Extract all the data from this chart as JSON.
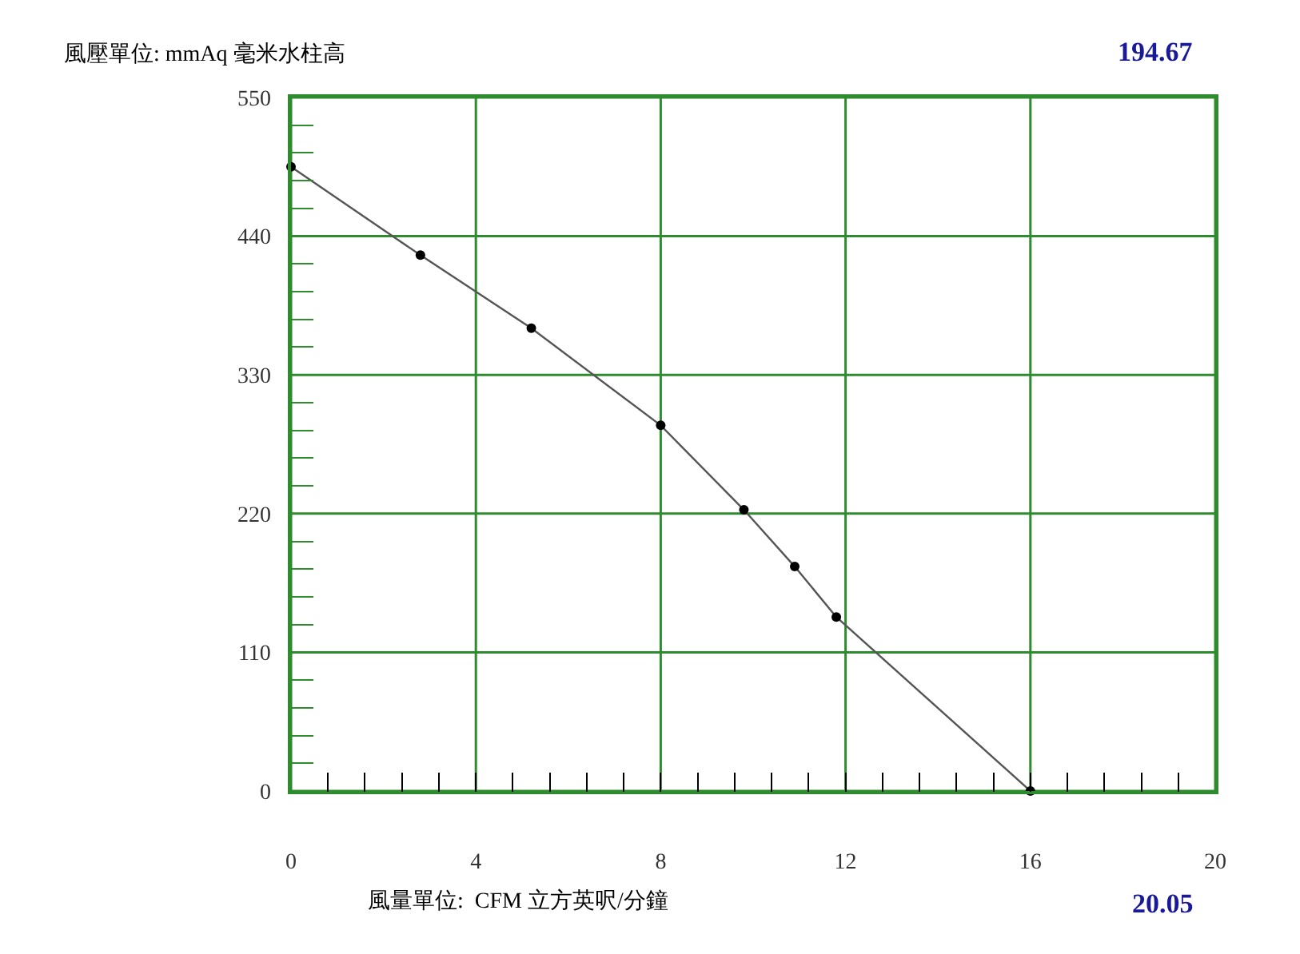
{
  "chart_data": {
    "type": "line",
    "xlabel": "風量單位:  CFM 立方英呎/分鐘",
    "ylabel": "風壓單位: mmAq 毫米水柱高",
    "annotations": [
      "194.67",
      "20.05"
    ],
    "x": [
      0,
      2.8,
      5.2,
      8,
      9.8,
      10.9,
      11.8,
      16
    ],
    "series": [
      {
        "color": "#555555",
        "values": [
          495,
          425,
          367,
          290,
          223,
          178,
          138,
          0
        ]
      }
    ],
    "marker": "circle",
    "line_style": "solid",
    "grid": true,
    "xlim": [
      0,
      20
    ],
    "ylim": [
      0,
      550
    ],
    "xticks": [
      0,
      {
        "value": 0.8,
        "label": null
      },
      {
        "value": 1.6,
        "label": null
      },
      {
        "value": 2.4,
        "label": null
      },
      {
        "value": 3.2,
        "label": null
      },
      4,
      {
        "value": 4.8,
        "label": null
      },
      {
        "value": 5.6,
        "label": null
      },
      {
        "value": 6.4,
        "label": null
      },
      {
        "value": 7.2,
        "label": null
      },
      8,
      {
        "value": 8.8,
        "label": null
      },
      {
        "value": 9.6,
        "label": null
      },
      {
        "value": 10.4,
        "label": null
      },
      {
        "value": 11.2,
        "label": null
      },
      12,
      {
        "value": 12.8,
        "label": null
      },
      {
        "value": 13.6,
        "label": null
      },
      {
        "value": 14.4,
        "label": null
      },
      {
        "value": 15.2,
        "label": null
      },
      16,
      {
        "value": 16.8,
        "label": null
      },
      {
        "value": 17.6,
        "label": null
      },
      {
        "value": 18.4,
        "label": null
      },
      {
        "value": 19.2,
        "label": null
      },
      20
    ],
    "yticks": [
      0,
      {
        "value": 22,
        "label": null
      },
      {
        "value": 44,
        "label": null
      },
      {
        "value": 66,
        "label": null
      },
      {
        "value": 88,
        "label": null
      },
      110,
      {
        "value": 132,
        "label": null
      },
      {
        "value": 154,
        "label": null
      },
      {
        "value": 176,
        "label": null
      },
      {
        "value": 198,
        "label": null
      },
      220,
      {
        "value": 242,
        "label": null
      },
      {
        "value": 264,
        "label": null
      },
      {
        "value": 286,
        "label": null
      },
      {
        "value": 308,
        "label": null
      },
      330,
      {
        "value": 352,
        "label": null
      },
      {
        "value": 374,
        "label": null
      },
      {
        "value": 396,
        "label": null
      },
      {
        "value": 418,
        "label": null
      },
      440,
      {
        "value": 462,
        "label": null
      },
      {
        "value": 484,
        "label": null
      },
      {
        "value": 506,
        "label": null
      },
      {
        "value": 528,
        "label": null
      },
      550
    ]
  }
}
